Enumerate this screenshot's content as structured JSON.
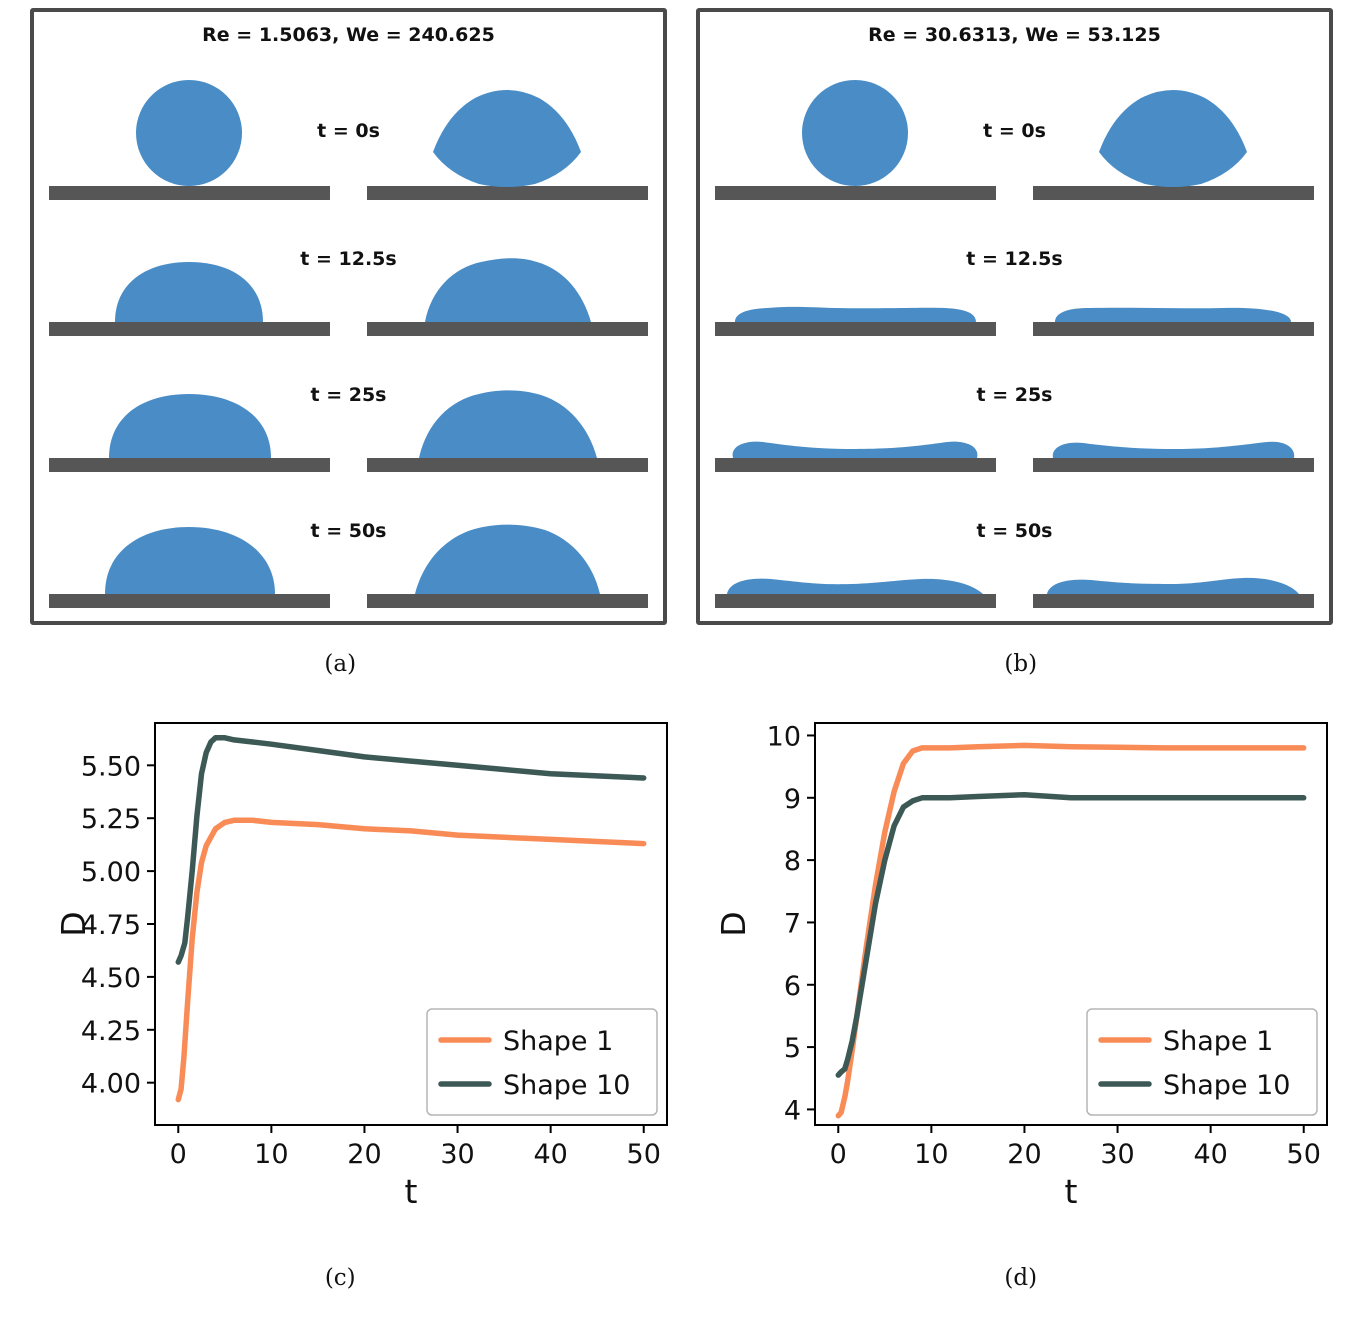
{
  "colors": {
    "droplet": "#4A8DC6",
    "surface_bar": "#565656",
    "panel_border": "#4a4a4a",
    "shape1": "#F98B57",
    "shape10": "#3D5956"
  },
  "panels": [
    {
      "title": "Re = 1.5063, We = 240.625",
      "label": "(a)",
      "rows": [
        {
          "time_label": "t = 0s",
          "left_shape": "blob-round",
          "right_shape": "blob-angular"
        },
        {
          "time_label": "t = 12.5s",
          "left_shape": "dome-small",
          "right_shape": "dome-bumpy-small"
        },
        {
          "time_label": "t = 25s",
          "left_shape": "dome-medium",
          "right_shape": "dome-bumpy-medium"
        },
        {
          "time_label": "t = 50s",
          "left_shape": "dome-large",
          "right_shape": "dome-bumpy-large"
        }
      ]
    },
    {
      "title": "Re = 30.6313, We = 53.125",
      "label": "(b)",
      "rows": [
        {
          "time_label": "t = 0s",
          "left_shape": "blob-round",
          "right_shape": "blob-angular"
        },
        {
          "time_label": "t = 12.5s",
          "left_shape": "slab-flat",
          "right_shape": "slab-flat-2"
        },
        {
          "time_label": "t = 25s",
          "left_shape": "pancake-rim",
          "right_shape": "pancake-rim-2"
        },
        {
          "time_label": "t = 50s",
          "left_shape": "pancake-wavy",
          "right_shape": "pancake-wavy-2"
        }
      ]
    }
  ],
  "chart_data": [
    {
      "type": "line",
      "label": "(c)",
      "xlabel": "t",
      "ylabel": "D",
      "xlim": [
        -2.5,
        52.5
      ],
      "ylim": [
        3.8,
        5.7
      ],
      "xticks": [
        0,
        10,
        20,
        30,
        40,
        50
      ],
      "ytick_values": [
        4.0,
        4.25,
        4.5,
        4.75,
        5.0,
        5.25,
        5.5
      ],
      "ytick_labels": [
        "4.00",
        "4.25",
        "4.50",
        "4.75",
        "5.00",
        "5.25",
        "5.50"
      ],
      "grid": false,
      "legend_position": "lower right",
      "series": [
        {
          "name": "Shape 1",
          "color": "#F98B57",
          "x": [
            0,
            0.3,
            0.6,
            1,
            1.5,
            2,
            2.5,
            3,
            4,
            5,
            6,
            8,
            10,
            15,
            20,
            25,
            30,
            35,
            40,
            45,
            50
          ],
          "y": [
            3.92,
            3.97,
            4.12,
            4.38,
            4.68,
            4.9,
            5.04,
            5.12,
            5.2,
            5.23,
            5.24,
            5.24,
            5.23,
            5.22,
            5.2,
            5.19,
            5.17,
            5.16,
            5.15,
            5.14,
            5.13
          ]
        },
        {
          "name": "Shape 10",
          "color": "#3D5956",
          "x": [
            0,
            0.3,
            0.7,
            1,
            1.5,
            2,
            2.5,
            3,
            3.5,
            4,
            5,
            6,
            8,
            10,
            15,
            20,
            25,
            30,
            35,
            40,
            45,
            50
          ],
          "y": [
            4.57,
            4.6,
            4.66,
            4.78,
            5.0,
            5.26,
            5.46,
            5.56,
            5.61,
            5.63,
            5.63,
            5.62,
            5.61,
            5.6,
            5.57,
            5.54,
            5.52,
            5.5,
            5.48,
            5.46,
            5.45,
            5.44
          ]
        }
      ]
    },
    {
      "type": "line",
      "label": "(d)",
      "xlabel": "t",
      "ylabel": "D",
      "xlim": [
        -2.5,
        52.5
      ],
      "ylim": [
        3.75,
        10.2
      ],
      "xticks": [
        0,
        10,
        20,
        30,
        40,
        50
      ],
      "ytick_values": [
        4,
        5,
        6,
        7,
        8,
        9,
        10
      ],
      "ytick_labels": [
        "4",
        "5",
        "6",
        "7",
        "8",
        "9",
        "10"
      ],
      "grid": false,
      "legend_position": "lower right",
      "series": [
        {
          "name": "Shape 1",
          "color": "#F98B57",
          "x": [
            0,
            0.3,
            0.7,
            1,
            1.5,
            2,
            3,
            4,
            5,
            6,
            7,
            8,
            9,
            10,
            12,
            15,
            20,
            25,
            30,
            35,
            40,
            45,
            50
          ],
          "y": [
            3.9,
            3.95,
            4.2,
            4.45,
            4.95,
            5.5,
            6.6,
            7.6,
            8.45,
            9.1,
            9.55,
            9.75,
            9.8,
            9.8,
            9.8,
            9.82,
            9.84,
            9.82,
            9.81,
            9.8,
            9.8,
            9.8,
            9.8
          ]
        },
        {
          "name": "Shape 10",
          "color": "#3D5956",
          "x": [
            0,
            0.3,
            0.7,
            1,
            1.5,
            2,
            3,
            4,
            5,
            6,
            7,
            8,
            9,
            10,
            12,
            15,
            20,
            25,
            30,
            35,
            40,
            45,
            50
          ],
          "y": [
            4.55,
            4.6,
            4.65,
            4.8,
            5.1,
            5.5,
            6.4,
            7.3,
            8.0,
            8.55,
            8.85,
            8.95,
            9.0,
            9.0,
            9.0,
            9.02,
            9.05,
            9.0,
            9.0,
            9.0,
            9.0,
            9.0,
            9.0
          ]
        }
      ]
    }
  ]
}
